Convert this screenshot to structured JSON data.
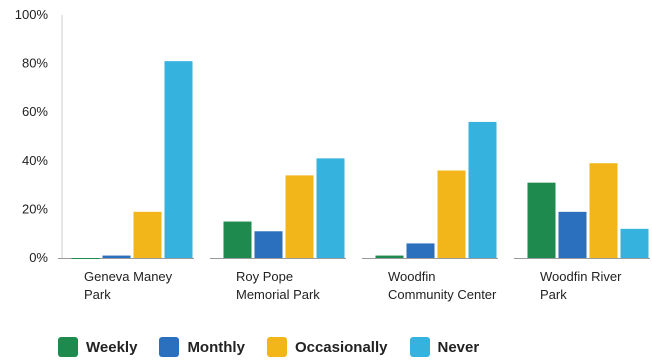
{
  "chart_data": {
    "type": "bar",
    "categories": [
      [
        "Geneva Maney",
        "Park"
      ],
      [
        "Roy Pope",
        "Memorial Park"
      ],
      [
        "Woodfin",
        "Community Center"
      ],
      [
        "Woodfin River",
        "Park"
      ]
    ],
    "series": [
      {
        "name": "Weekly",
        "color": "#1e8a4e",
        "values": [
          0,
          15,
          1,
          31
        ]
      },
      {
        "name": "Monthly",
        "color": "#2b6fbf",
        "values": [
          1,
          11,
          6,
          19
        ]
      },
      {
        "name": "Occasionally",
        "color": "#f2b51a",
        "values": [
          19,
          34,
          36,
          39
        ]
      },
      {
        "name": "Never",
        "color": "#36b2de",
        "values": [
          81,
          41,
          56,
          12
        ]
      }
    ],
    "ylim": [
      0,
      100
    ],
    "yticks": [
      "0%",
      "20%",
      "40%",
      "60%",
      "80%",
      "100%"
    ],
    "ytick_values": [
      0,
      20,
      40,
      60,
      80,
      100
    ],
    "legend_position": "bottom-left",
    "grid": false
  }
}
